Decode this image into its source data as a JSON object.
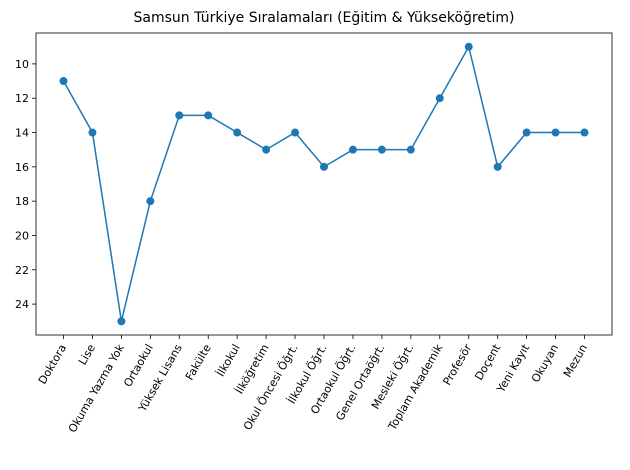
{
  "chart_data": {
    "type": "line",
    "title": "Samsun Türkiye Sıralamaları (Eğitim & Yükseköğretim)",
    "categories": [
      "Doktora",
      "Lise",
      "Okuma Yazma Yok",
      "Ortaokul",
      "Yüksek Lisans",
      "Fakülte",
      "İlkokul",
      "İlköğretim",
      "Okul Öncesi Öğrt.",
      "İlkokul Öğrt.",
      "Ortaokul Öğrt.",
      "Genel Ortaöğrt.",
      "Mesleki Öğrt.",
      "Toplam Akademik",
      "Profesör",
      "Doçent",
      "Yeni Kayıt",
      "Okuyan",
      "Mezun"
    ],
    "series": [
      {
        "name": "Samsun",
        "color": "#1f77b4",
        "values": [
          11,
          14,
          25,
          18,
          13,
          13,
          14,
          15,
          14,
          16,
          15,
          15,
          15,
          12,
          9,
          16,
          14,
          14,
          14
        ]
      }
    ],
    "ylim": [
      25.8,
      8.2
    ],
    "yticks": [
      10,
      12,
      14,
      16,
      18,
      20,
      22,
      24
    ],
    "y_inverted": true,
    "grid": false
  }
}
